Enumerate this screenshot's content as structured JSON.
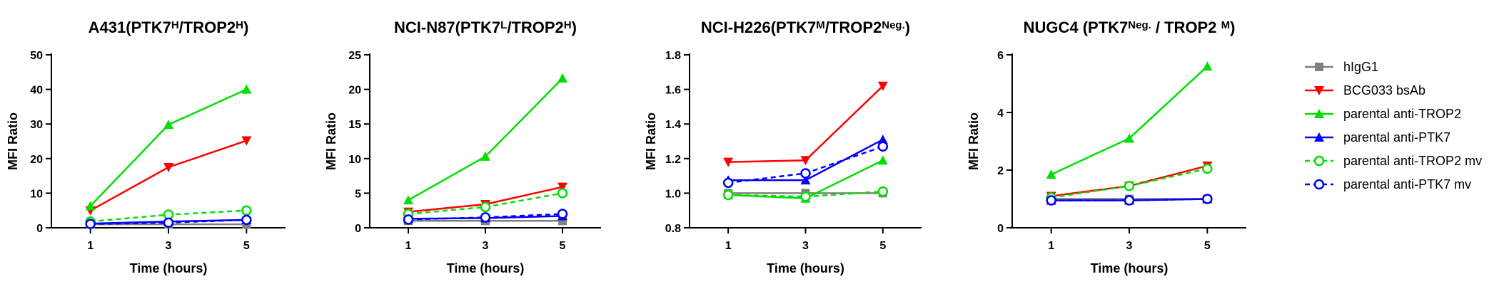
{
  "legend": [
    {
      "key": "hIgG1",
      "label": "hIgG1"
    },
    {
      "key": "bcg033",
      "label": "BCG033 bsAb"
    },
    {
      "key": "anti_trop2",
      "label": "parental anti-TROP2"
    },
    {
      "key": "anti_ptk7",
      "label": "parental anti-PTK7"
    },
    {
      "key": "anti_trop2_mv",
      "label": "parental anti-TROP2 mv"
    },
    {
      "key": "anti_ptk7_mv",
      "label": "parental anti-PTK7 mv"
    }
  ],
  "series_style": {
    "hIgG1": {
      "color": "#808080",
      "marker": "square",
      "dash": false
    },
    "bcg033": {
      "color": "#ff0000",
      "marker": "triangle-down",
      "dash": false
    },
    "anti_trop2": {
      "color": "#00e000",
      "marker": "triangle-up",
      "dash": false
    },
    "anti_ptk7": {
      "color": "#0000ff",
      "marker": "triangle-up",
      "dash": false
    },
    "anti_trop2_mv": {
      "color": "#00e000",
      "marker": "circle-open",
      "dash": true
    },
    "anti_ptk7_mv": {
      "color": "#0000ff",
      "marker": "circle-open",
      "dash": true
    }
  },
  "chart_data": [
    {
      "type": "line",
      "title": {
        "parts": [
          {
            "t": "A431(PTK7"
          },
          {
            "t": "H",
            "sup": true
          },
          {
            "t": "/TROP2"
          },
          {
            "t": "H",
            "sup": true
          },
          {
            "t": ")"
          }
        ]
      },
      "xlabel": "Time (hours)",
      "ylabel": "MFI Ratio",
      "x": [
        1,
        3,
        5
      ],
      "xlim": [
        0,
        6
      ],
      "ylim": [
        0,
        50
      ],
      "yticks": [
        0,
        10,
        20,
        30,
        40,
        50
      ],
      "yticklabels": [
        "0",
        "10",
        "20",
        "30",
        "40",
        "50"
      ],
      "series": [
        {
          "key": "hIgG1",
          "values": [
            1.0,
            1.0,
            1.0
          ]
        },
        {
          "key": "bcg033",
          "values": [
            5.0,
            17.5,
            25.2
          ]
        },
        {
          "key": "anti_trop2",
          "values": [
            6.3,
            29.8,
            40.0
          ]
        },
        {
          "key": "anti_ptk7",
          "values": [
            1.2,
            1.8,
            2.3
          ]
        },
        {
          "key": "anti_trop2_mv",
          "values": [
            1.8,
            3.8,
            5.0
          ]
        },
        {
          "key": "anti_ptk7_mv",
          "values": [
            1.1,
            1.5,
            2.3
          ]
        }
      ]
    },
    {
      "type": "line",
      "title": {
        "parts": [
          {
            "t": "NCI-N87(PTK7"
          },
          {
            "t": "L",
            "sup": true
          },
          {
            "t": "/TROP2"
          },
          {
            "t": "H",
            "sup": true
          },
          {
            "t": ")"
          }
        ]
      },
      "xlabel": "Time (hours)",
      "ylabel": "MFI Ratio",
      "x": [
        1,
        3,
        5
      ],
      "xlim": [
        0,
        6
      ],
      "ylim": [
        0,
        25
      ],
      "yticks": [
        0,
        5,
        10,
        15,
        20,
        25
      ],
      "yticklabels": [
        "0",
        "5",
        "10",
        "15",
        "20",
        "25"
      ],
      "series": [
        {
          "key": "hIgG1",
          "values": [
            1.0,
            1.0,
            1.0
          ]
        },
        {
          "key": "bcg033",
          "values": [
            2.3,
            3.4,
            5.9
          ]
        },
        {
          "key": "anti_trop2",
          "values": [
            4.0,
            10.3,
            21.6
          ]
        },
        {
          "key": "anti_ptk7",
          "values": [
            1.3,
            1.4,
            1.7
          ]
        },
        {
          "key": "anti_trop2_mv",
          "values": [
            2.0,
            3.0,
            5.0
          ]
        },
        {
          "key": "anti_ptk7_mv",
          "values": [
            1.2,
            1.5,
            2.0
          ]
        }
      ]
    },
    {
      "type": "line",
      "title": {
        "parts": [
          {
            "t": "NCI-H226(PTK7"
          },
          {
            "t": "M",
            "sup": true
          },
          {
            "t": "/TROP2"
          },
          {
            "t": "Neg.",
            "sup": true
          },
          {
            "t": ")"
          }
        ]
      },
      "xlabel": "Time (hours)",
      "ylabel": "MFI Ratio",
      "x": [
        1,
        3,
        5
      ],
      "xlim": [
        0,
        6
      ],
      "ylim": [
        0.8,
        1.8
      ],
      "yticks": [
        0.8,
        1.0,
        1.2,
        1.4,
        1.6,
        1.8
      ],
      "yticklabels": [
        "0.8",
        "1.0",
        "1.2",
        "1.4",
        "1.6",
        "1.8"
      ],
      "series": [
        {
          "key": "hIgG1",
          "values": [
            1.0,
            1.0,
            1.0
          ]
        },
        {
          "key": "bcg033",
          "values": [
            1.18,
            1.19,
            1.62
          ]
        },
        {
          "key": "anti_trop2",
          "values": [
            0.99,
            0.97,
            1.19
          ]
        },
        {
          "key": "anti_ptk7",
          "values": [
            1.075,
            1.075,
            1.31
          ]
        },
        {
          "key": "anti_trop2_mv",
          "values": [
            0.99,
            0.98,
            1.01
          ]
        },
        {
          "key": "anti_ptk7_mv",
          "values": [
            1.06,
            1.115,
            1.27
          ]
        }
      ]
    },
    {
      "type": "line",
      "title": {
        "parts": [
          {
            "t": "NUGC4 (PTK7"
          },
          {
            "t": "Neg.",
            "sup": true
          },
          {
            "t": " / TROP2 "
          },
          {
            "t": "M",
            "sup": true
          },
          {
            "t": ")"
          }
        ]
      },
      "xlabel": "Time (hours)",
      "ylabel": "MFI Ratio",
      "x": [
        1,
        3,
        5
      ],
      "xlim": [
        0,
        6
      ],
      "ylim": [
        0,
        6
      ],
      "yticks": [
        0,
        2,
        4,
        6
      ],
      "yticklabels": [
        "0",
        "2",
        "4",
        "6"
      ],
      "series": [
        {
          "key": "hIgG1",
          "values": [
            1.0,
            1.0,
            1.0
          ]
        },
        {
          "key": "bcg033",
          "values": [
            1.1,
            1.45,
            2.15
          ]
        },
        {
          "key": "anti_trop2",
          "values": [
            1.85,
            3.1,
            5.6
          ]
        },
        {
          "key": "anti_ptk7",
          "values": [
            0.95,
            0.95,
            1.0
          ]
        },
        {
          "key": "anti_trop2_mv",
          "values": [
            1.05,
            1.45,
            2.05
          ]
        },
        {
          "key": "anti_ptk7_mv",
          "values": [
            0.95,
            0.95,
            1.0
          ]
        }
      ]
    }
  ]
}
